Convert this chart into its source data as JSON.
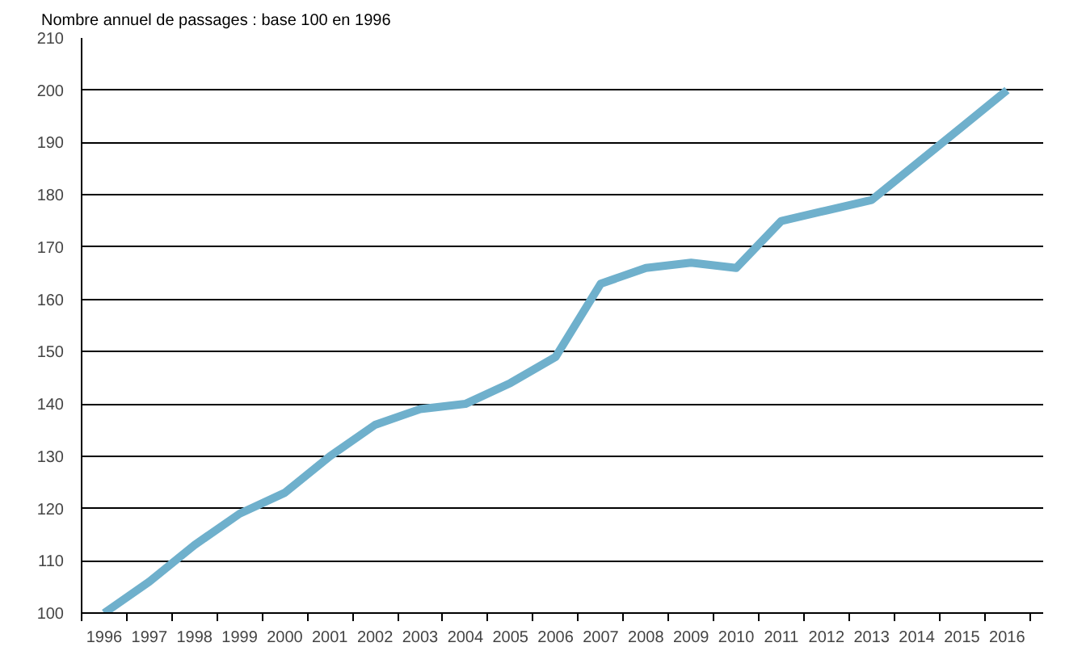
{
  "chart_data": {
    "type": "line",
    "title": "Nombre annuel de passages : base 100 en 1996",
    "categories": [
      "1996",
      "1997",
      "1998",
      "1999",
      "2000",
      "2001",
      "2002",
      "2003",
      "2004",
      "2005",
      "2006",
      "2007",
      "2008",
      "2009",
      "2010",
      "2011",
      "2012",
      "2013",
      "2014",
      "2015",
      "2016"
    ],
    "series": [
      {
        "color": "#6fb0cc",
        "values": [
          100,
          106,
          113,
          119,
          123,
          130,
          136,
          139,
          140,
          144,
          149,
          163,
          166,
          167,
          166,
          175,
          177,
          179,
          186,
          193,
          200
        ]
      }
    ],
    "ylim": [
      100,
      210
    ],
    "yticks": [
      100,
      110,
      120,
      130,
      140,
      150,
      160,
      170,
      180,
      190,
      200,
      210
    ],
    "grid": "y",
    "marker": "none",
    "line_style": "solid"
  }
}
